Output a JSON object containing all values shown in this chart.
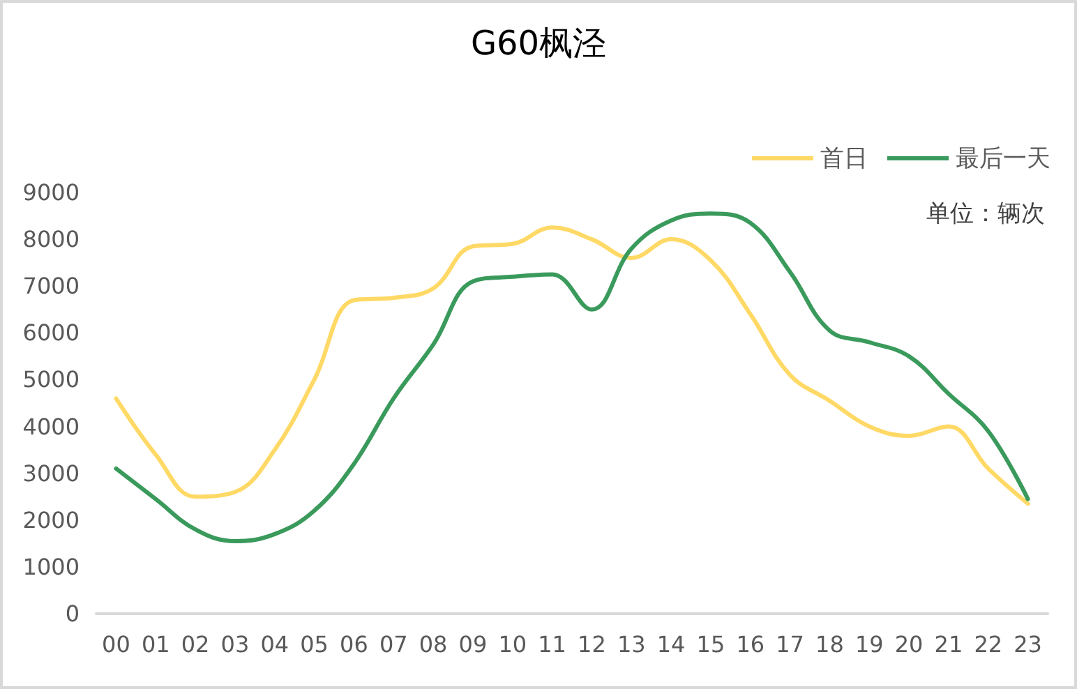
{
  "chart_data": {
    "type": "line",
    "title": "G60枫泾",
    "annotations": [
      "单位：辆次"
    ],
    "categories": [
      "00",
      "01",
      "02",
      "03",
      "04",
      "05",
      "06",
      "07",
      "08",
      "09",
      "10",
      "11",
      "12",
      "13",
      "14",
      "15",
      "16",
      "17",
      "18",
      "19",
      "20",
      "21",
      "22",
      "23"
    ],
    "series": [
      {
        "name": "首日",
        "color": "#ffd966",
        "values": [
          4600,
          3400,
          2500,
          2600,
          3500,
          5000,
          6700,
          6750,
          6950,
          7850,
          7900,
          8250,
          8000,
          7600,
          8000,
          7550,
          6400,
          5100,
          4550,
          4000,
          3800,
          4000,
          3100,
          2350
        ]
      },
      {
        "name": "最后一天",
        "color": "#3a9a5c",
        "values": [
          3100,
          2450,
          1800,
          1550,
          1700,
          2200,
          3200,
          4600,
          5750,
          7100,
          7200,
          7250,
          6500,
          7800,
          8400,
          8550,
          8350,
          7300,
          6050,
          5800,
          5500,
          4700,
          3900,
          2450
        ]
      }
    ],
    "ylim": [
      0,
      9000
    ],
    "yticks": [
      0,
      1000,
      2000,
      3000,
      4000,
      5000,
      6000,
      7000,
      8000,
      9000
    ],
    "legend": "top right",
    "marker": "none"
  }
}
